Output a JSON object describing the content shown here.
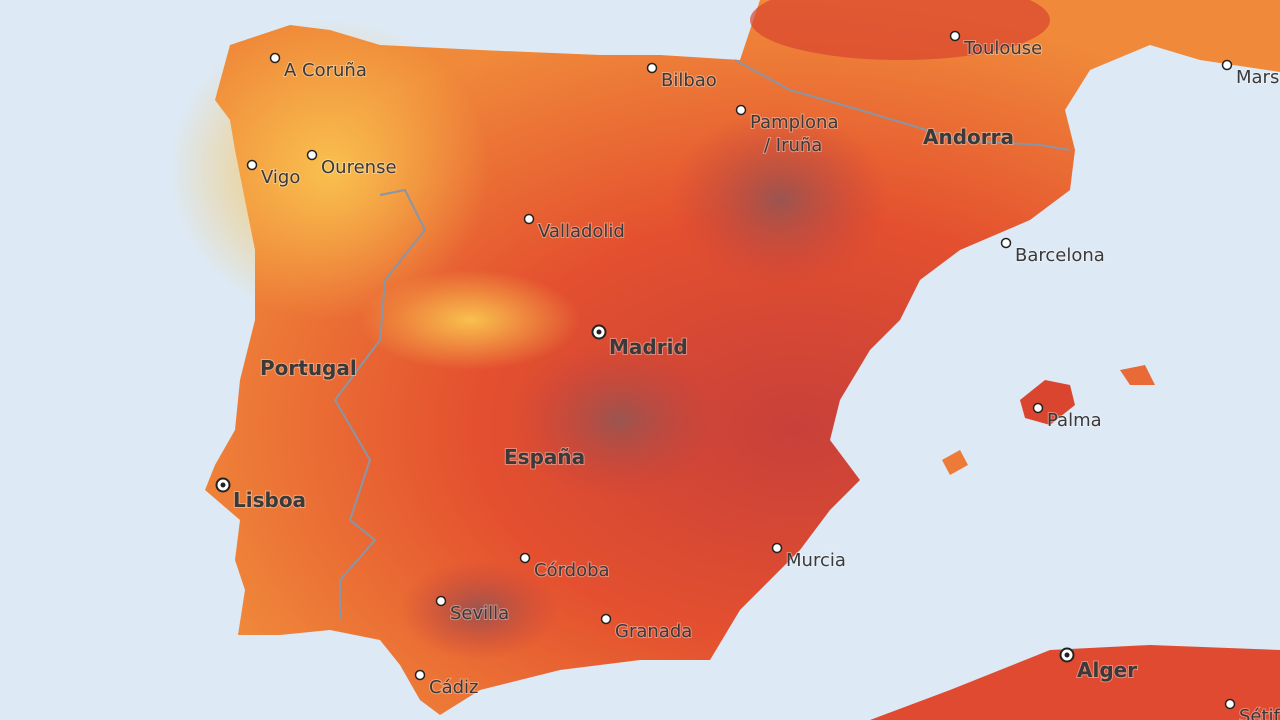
{
  "cities": [
    {
      "lines": [
        "A Coruña"
      ]
    },
    {
      "lines": [
        "Bilbao"
      ]
    },
    {
      "lines": [
        "Toulouse"
      ]
    },
    {
      "lines": [
        "Mars"
      ]
    },
    {
      "lines": [
        "Pamplona",
        "/ Iruña"
      ]
    },
    {
      "lines": [
        "Vigo"
      ]
    },
    {
      "lines": [
        "Ourense"
      ]
    },
    {
      "lines": [
        "Valladolid"
      ]
    },
    {
      "lines": [
        "Barcelona"
      ]
    },
    {
      "lines": [
        "Palma"
      ]
    },
    {
      "lines": [
        "Murcia"
      ]
    },
    {
      "lines": [
        "Córdoba"
      ]
    },
    {
      "lines": [
        "Sevilla"
      ]
    },
    {
      "lines": [
        "Granada"
      ]
    },
    {
      "lines": [
        "Cádiz"
      ]
    },
    {
      "lines": [
        "Sétif"
      ]
    }
  ],
  "capitals": [
    {
      "name": "Madrid"
    },
    {
      "name": "Lisboa"
    },
    {
      "name": "Alger"
    }
  ],
  "regions": [
    {
      "name": "Portugal"
    },
    {
      "name": "España"
    },
    {
      "name": "Andorra"
    }
  ]
}
